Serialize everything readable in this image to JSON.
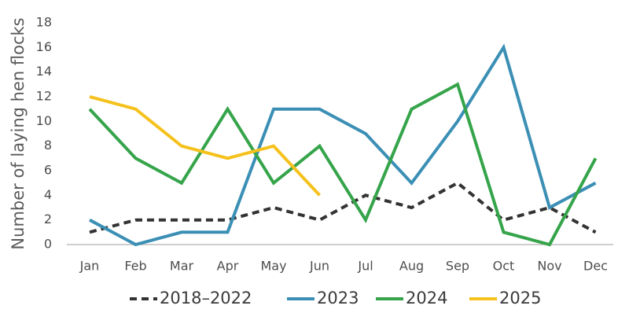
{
  "chart_data": {
    "type": "line",
    "ylabel": "Number of laying hen flocks",
    "categories": [
      "Jan",
      "Feb",
      "Mar",
      "Apr",
      "May",
      "Jun",
      "Jul",
      "Aug",
      "Sep",
      "Oct",
      "Nov",
      "Dec"
    ],
    "ylim": [
      0,
      18
    ],
    "yticks": [
      0,
      2,
      4,
      6,
      8,
      10,
      12,
      14,
      16,
      18
    ],
    "grid": false,
    "legend_position": "bottom",
    "series": [
      {
        "name": "2018–2022",
        "color": "#333333",
        "dashed": true,
        "values": [
          1,
          2,
          2,
          2,
          3,
          2,
          4,
          3,
          5,
          2,
          3,
          1
        ]
      },
      {
        "name": "2023",
        "color": "#3b8fb5",
        "dashed": false,
        "values": [
          2,
          0,
          1,
          1,
          11,
          11,
          9,
          5,
          10,
          16,
          3,
          5
        ]
      },
      {
        "name": "2024",
        "color": "#35a44a",
        "dashed": false,
        "values": [
          11,
          7,
          5,
          11,
          5,
          8,
          2,
          11,
          13,
          1,
          0,
          7
        ]
      },
      {
        "name": "2025",
        "color": "#f5c11c",
        "dashed": false,
        "values": [
          12,
          11,
          8,
          7,
          8,
          4,
          null,
          null,
          null,
          null,
          null,
          null
        ]
      }
    ]
  }
}
